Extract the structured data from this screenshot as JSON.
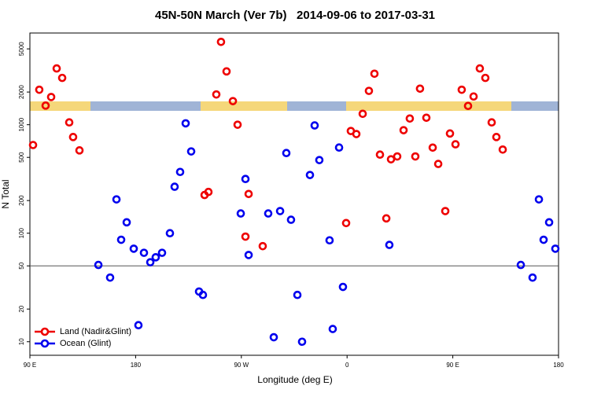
{
  "chart_data": {
    "type": "scatter",
    "title": "45N-50N March (Ver 7b)   2014-09-06 to 2017-03-31",
    "xlabel": "Longitude (deg E)",
    "ylabel": "N Total",
    "xlim": [
      90,
      540
    ],
    "xticks": [
      {
        "value": 90,
        "label": "90 E"
      },
      180,
      {
        "value": 270,
        "label": "90 W"
      },
      {
        "value": 360,
        "label": "0"
      },
      {
        "value": 450,
        "label": "90 E"
      },
      {
        "value": 540,
        "label": "180"
      }
    ],
    "ylim": [
      7.5,
      7000
    ],
    "ylog": true,
    "yticks": [
      10,
      20,
      50,
      100,
      200,
      500,
      1000,
      2000,
      5000
    ],
    "reference_line": 50,
    "legend": "lower left",
    "series": [
      {
        "name": "Land (Nadir&Glint)",
        "color": "#ee0000",
        "x": [
          92.7,
          98,
          103.4,
          108.1,
          112.8,
          117.5,
          123.5,
          126.8,
          132.2,
          238.7,
          242,
          248.7,
          252.7,
          257.4,
          262.8,
          266.8,
          273.5,
          276.2,
          288.2,
          359.2,
          363.2,
          367.9,
          373.3,
          378.6,
          383.3,
          388,
          393.4,
          397.4,
          402.7,
          408.1,
          413.4,
          418.1,
          422.1,
          427.5,
          432.9,
          437.6,
          443.6,
          447.6,
          452.3,
          457.6,
          463,
          467.7,
          473,
          477.7,
          483.1,
          487.1,
          492.5
        ],
        "values": [
          650,
          2100,
          1500,
          1800,
          3300,
          2700,
          1050,
          770,
          580,
          225,
          240,
          1900,
          5800,
          3100,
          1650,
          1000,
          93,
          230,
          76,
          124,
          875,
          820,
          1260,
          2050,
          2950,
          530,
          137,
          480,
          510,
          890,
          1140,
          510,
          2150,
          1160,
          615,
          435,
          160,
          830,
          660,
          2100,
          1490,
          1820,
          3300,
          2700,
          1050,
          770,
          590
        ]
      },
      {
        "name": "Ocean (Glint)",
        "color": "#0000ee",
        "x": [
          148.3,
          158.3,
          163.7,
          167.7,
          172.4,
          178.4,
          182.4,
          187.1,
          192.5,
          197.1,
          202.5,
          209.2,
          213.2,
          217.9,
          222.6,
          227.3,
          234,
          237.3,
          269.5,
          273.5,
          276.2,
          292.9,
          297.6,
          303,
          308.3,
          312.3,
          317.7,
          321.7,
          328.4,
          332.4,
          336.4,
          345.1,
          347.8,
          353.2,
          356.5,
          396,
          507.9,
          517.9,
          523.3,
          527.3,
          532,
          537.3
        ],
        "values": [
          51,
          39,
          205,
          87,
          126,
          72,
          14.2,
          66,
          54,
          60,
          66,
          100,
          268,
          367,
          1030,
          567,
          29,
          27,
          152,
          316,
          63,
          152,
          11,
          160,
          548,
          133,
          27,
          10,
          344,
          985,
          472,
          86,
          13.1,
          616,
          32,
          78,
          51,
          39,
          205,
          87,
          126,
          72
        ]
      }
    ]
  }
}
